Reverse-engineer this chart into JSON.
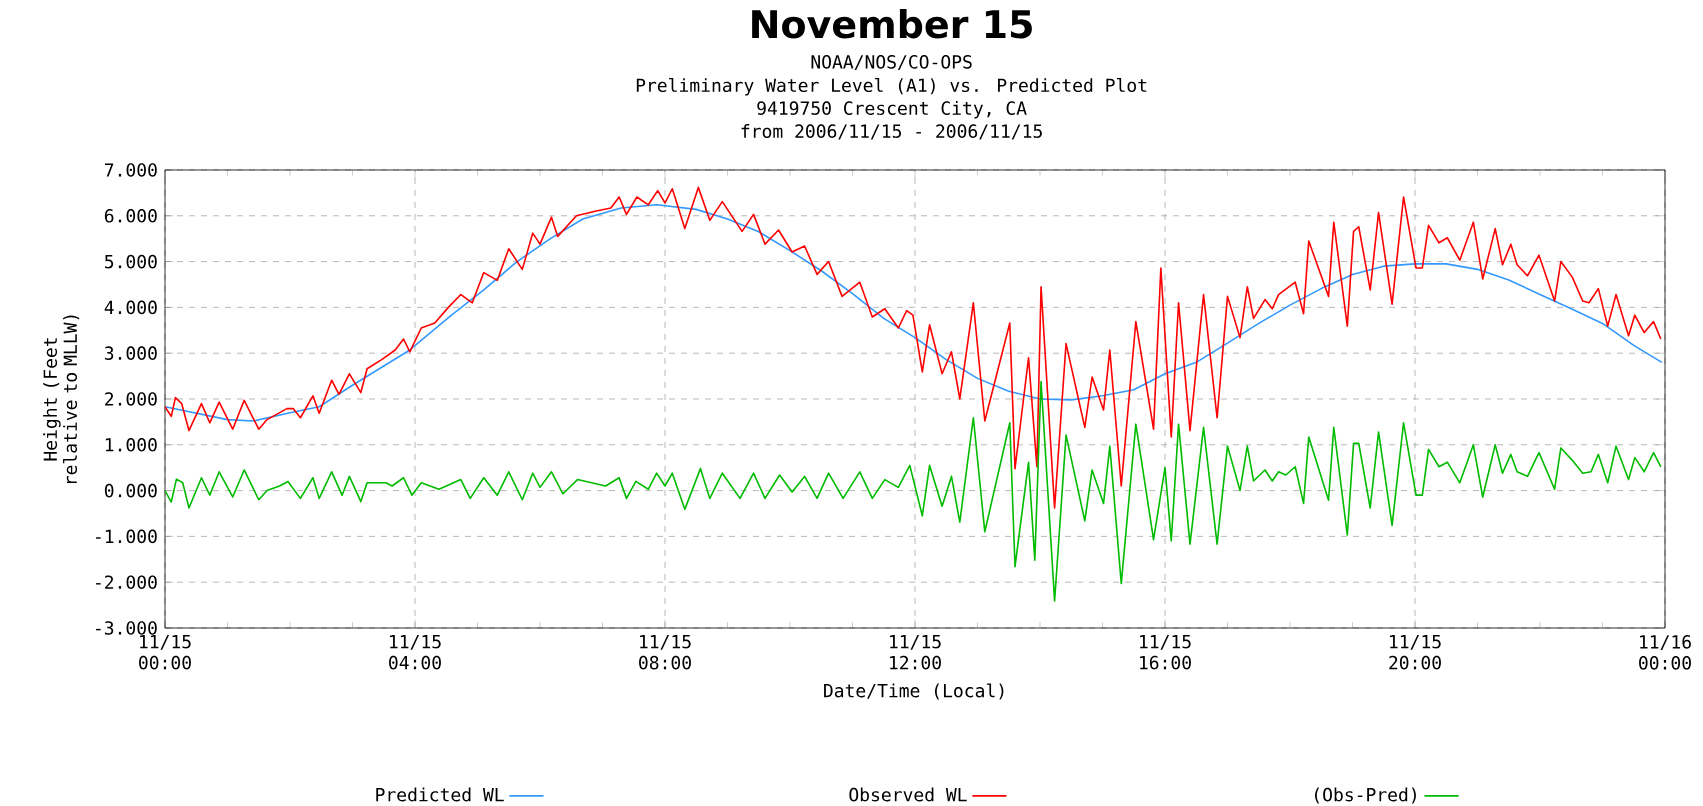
{
  "chart_data": {
    "type": "line",
    "title": "November 15",
    "annotations": [
      "NOAA/NOS/CO-OPS",
      "Preliminary  Water Level (A1) vs. Predicted Plot",
      "9419750 Crescent City, CA",
      "from 2006/11/15 - 2006/11/15"
    ],
    "xlabel": "Date/Time (Local)",
    "ylabel": "Height (Feet relative to MLLW)",
    "xlim": [
      "2006-11-15T00:00",
      "2006-11-16T00:00"
    ],
    "xticks": [
      {
        "value": "2006-11-15T00:00",
        "label": "11/15 00:00"
      },
      {
        "value": "2006-11-15T04:00",
        "label": "11/15 04:00"
      },
      {
        "value": "2006-11-15T08:00",
        "label": "11/15 08:00"
      },
      {
        "value": "2006-11-15T12:00",
        "label": "11/15 12:00"
      },
      {
        "value": "2006-11-15T16:00",
        "label": "11/15 16:00"
      },
      {
        "value": "2006-11-15T20:00",
        "label": "11/15 20:00"
      },
      {
        "value": "2006-11-16T00:00",
        "label": "11/16 00:00"
      }
    ],
    "ylim": [
      -3,
      7
    ],
    "yticks": [
      {
        "value": -3,
        "label": "-3.000"
      },
      {
        "value": -2,
        "label": "-2.000"
      },
      {
        "value": -1,
        "label": "-1.000"
      },
      {
        "value": 0,
        "label": "0.000"
      },
      {
        "value": 1,
        "label": "1.000"
      },
      {
        "value": 2,
        "label": "2.000"
      },
      {
        "value": 3,
        "label": "3.000"
      },
      {
        "value": 4,
        "label": "4.000"
      },
      {
        "value": 5,
        "label": "5.000"
      },
      {
        "value": 6,
        "label": "6.000"
      },
      {
        "value": 7,
        "label": "7.000"
      }
    ],
    "grid": true,
    "legend": "bottom",
    "marker": "none",
    "line_style": "solid",
    "series": [
      {
        "name": "Predicted WL",
        "color": "#3399ff",
        "x": [
          "2006-11-15T00:00",
          "2006-11-15T01:00",
          "2006-11-15T01:25",
          "2006-11-15T02:00",
          "2006-11-15T02:28",
          "2006-11-15T03:00",
          "2006-11-15T03:55",
          "2006-11-15T04:35",
          "2006-11-15T05:06",
          "2006-11-15T05:38",
          "2006-11-15T06:10",
          "2006-11-15T06:41",
          "2006-11-15T07:18",
          "2006-11-15T07:52",
          "2006-11-15T08:30",
          "2006-11-15T09:00",
          "2006-11-15T09:30",
          "2006-11-15T10:00",
          "2006-11-15T10:30",
          "2006-11-15T11:00",
          "2006-11-15T11:30",
          "2006-11-15T12:00",
          "2006-11-15T12:30",
          "2006-11-15T13:00",
          "2006-11-15T13:30",
          "2006-11-15T14:00",
          "2006-11-15T14:30",
          "2006-11-15T15:00",
          "2006-11-15T15:30",
          "2006-11-15T16:00",
          "2006-11-15T16:30",
          "2006-11-15T17:00",
          "2006-11-15T17:30",
          "2006-11-15T18:00",
          "2006-11-15T18:30",
          "2006-11-15T19:00",
          "2006-11-15T19:30",
          "2006-11-15T20:00",
          "2006-11-15T20:30",
          "2006-11-15T21:00",
          "2006-11-15T21:30",
          "2006-11-15T22:00",
          "2006-11-15T22:30",
          "2006-11-15T23:00",
          "2006-11-15T23:30",
          "2006-11-15T23:57"
        ],
        "values": [
          1.83,
          1.55,
          1.52,
          1.7,
          1.83,
          2.3,
          3.07,
          3.83,
          4.38,
          5.0,
          5.5,
          5.93,
          6.17,
          6.24,
          6.14,
          5.93,
          5.65,
          5.24,
          4.8,
          4.3,
          3.76,
          3.34,
          2.86,
          2.45,
          2.17,
          2.0,
          1.98,
          2.07,
          2.2,
          2.55,
          2.8,
          3.22,
          3.65,
          4.05,
          4.41,
          4.72,
          4.9,
          4.95,
          4.95,
          4.83,
          4.6,
          4.28,
          3.97,
          3.65,
          3.17,
          2.8
        ]
      },
      {
        "name": "Observed WL",
        "color": "#ff0000",
        "x": [
          "2006-11-15T00:00",
          "2006-11-15T00:06",
          "2006-11-15T00:10",
          "2006-11-15T00:16",
          "2006-11-15T00:23",
          "2006-11-15T00:35",
          "2006-11-15T00:43",
          "2006-11-15T00:52",
          "2006-11-15T01:05",
          "2006-11-15T01:16",
          "2006-11-15T01:30",
          "2006-11-15T01:38",
          "2006-11-15T01:57",
          "2006-11-15T02:03",
          "2006-11-15T02:10",
          "2006-11-15T02:22",
          "2006-11-15T02:28",
          "2006-11-15T02:40",
          "2006-11-15T02:47",
          "2006-11-15T02:57",
          "2006-11-15T03:08",
          "2006-11-15T03:14",
          "2006-11-15T03:28",
          "2006-11-15T03:41",
          "2006-11-15T03:49",
          "2006-11-15T03:55",
          "2006-11-15T04:06",
          "2006-11-15T04:19",
          "2006-11-15T04:32",
          "2006-11-15T04:44",
          "2006-11-15T04:55",
          "2006-11-15T05:06",
          "2006-11-15T05:19",
          "2006-11-15T05:30",
          "2006-11-15T05:43",
          "2006-11-15T05:53",
          "2006-11-15T06:00",
          "2006-11-15T06:11",
          "2006-11-15T06:17",
          "2006-11-15T06:35",
          "2006-11-15T06:53",
          "2006-11-15T07:08",
          "2006-11-15T07:16",
          "2006-11-15T07:23",
          "2006-11-15T07:33",
          "2006-11-15T07:44",
          "2006-11-15T07:53",
          "2006-11-15T08:00",
          "2006-11-15T08:07",
          "2006-11-15T08:19",
          "2006-11-15T08:32",
          "2006-11-15T08:43",
          "2006-11-15T08:55",
          "2006-11-15T09:14",
          "2006-11-15T09:25",
          "2006-11-15T09:36",
          "2006-11-15T09:49",
          "2006-11-15T10:02",
          "2006-11-15T10:14",
          "2006-11-15T10:26",
          "2006-11-15T10:37",
          "2006-11-15T10:50",
          "2006-11-15T11:07",
          "2006-11-15T11:19",
          "2006-11-15T11:31",
          "2006-11-15T11:44",
          "2006-11-15T11:52",
          "2006-11-15T11:58",
          "2006-11-15T12:07",
          "2006-11-15T12:14",
          "2006-11-15T12:26",
          "2006-11-15T12:35",
          "2006-11-15T12:43",
          "2006-11-15T12:56",
          "2006-11-15T13:07",
          "2006-11-15T13:31",
          "2006-11-15T13:36",
          "2006-11-15T13:49",
          "2006-11-15T13:57",
          "2006-11-15T14:01",
          "2006-11-15T14:14",
          "2006-11-15T14:25",
          "2006-11-15T14:43",
          "2006-11-15T14:50",
          "2006-11-15T15:01",
          "2006-11-15T15:07",
          "2006-11-15T15:18",
          "2006-11-15T15:32",
          "2006-11-15T15:49",
          "2006-11-15T15:56",
          "2006-11-15T16:06",
          "2006-11-15T16:13",
          "2006-11-15T16:24",
          "2006-11-15T16:37",
          "2006-11-15T16:50",
          "2006-11-15T17:00",
          "2006-11-15T17:12",
          "2006-11-15T17:19",
          "2006-11-15T17:25",
          "2006-11-15T17:36",
          "2006-11-15T17:43",
          "2006-11-15T17:49",
          "2006-11-15T18:05",
          "2006-11-15T18:13",
          "2006-11-15T18:18",
          "2006-11-15T18:37",
          "2006-11-15T18:42",
          "2006-11-15T18:55",
          "2006-11-15T19:01",
          "2006-11-15T19:06",
          "2006-11-15T19:17",
          "2006-11-15T19:25",
          "2006-11-15T19:38",
          "2006-11-15T19:49",
          "2006-11-15T20:01",
          "2006-11-15T20:07",
          "2006-11-15T20:13",
          "2006-11-15T20:23",
          "2006-11-15T20:31",
          "2006-11-15T20:43",
          "2006-11-15T20:56",
          "2006-11-15T21:05",
          "2006-11-15T21:17",
          "2006-11-15T21:24",
          "2006-11-15T21:32",
          "2006-11-15T21:38",
          "2006-11-15T21:48",
          "2006-11-15T21:59",
          "2006-11-15T22:14",
          "2006-11-15T22:20",
          "2006-11-15T22:31",
          "2006-11-15T22:41",
          "2006-11-15T22:47",
          "2006-11-15T22:56",
          "2006-11-15T23:05",
          "2006-11-15T23:13",
          "2006-11-15T23:25",
          "2006-11-15T23:31",
          "2006-11-15T23:40",
          "2006-11-15T23:49",
          "2006-11-15T23:56"
        ],
        "values": [
          1.83,
          1.62,
          2.03,
          1.9,
          1.31,
          1.9,
          1.48,
          1.93,
          1.34,
          1.97,
          1.34,
          1.55,
          1.79,
          1.79,
          1.59,
          2.07,
          1.69,
          2.41,
          2.1,
          2.55,
          2.14,
          2.66,
          2.86,
          3.07,
          3.31,
          3.03,
          3.55,
          3.66,
          4.0,
          4.28,
          4.1,
          4.76,
          4.59,
          5.28,
          4.83,
          5.62,
          5.38,
          5.97,
          5.55,
          6.0,
          6.1,
          6.17,
          6.41,
          6.03,
          6.41,
          6.24,
          6.55,
          6.28,
          6.59,
          5.72,
          6.62,
          5.9,
          6.31,
          5.66,
          6.03,
          5.38,
          5.69,
          5.21,
          5.34,
          4.72,
          5.0,
          4.24,
          4.55,
          3.79,
          3.97,
          3.55,
          3.93,
          3.83,
          2.59,
          3.62,
          2.55,
          3.03,
          2.0,
          4.1,
          1.52,
          3.66,
          0.48,
          2.9,
          0.52,
          4.45,
          -0.38,
          3.21,
          1.38,
          2.48,
          1.76,
          3.07,
          0.1,
          3.69,
          1.34,
          4.86,
          1.17,
          4.1,
          1.31,
          4.28,
          1.59,
          4.24,
          3.34,
          4.45,
          3.76,
          4.17,
          3.97,
          4.28,
          4.55,
          3.86,
          5.45,
          4.24,
          5.86,
          3.59,
          5.66,
          5.76,
          4.38,
          6.07,
          4.07,
          6.41,
          4.86,
          4.86,
          5.79,
          5.41,
          5.52,
          5.03,
          5.86,
          4.62,
          5.72,
          4.93,
          5.38,
          4.93,
          4.69,
          5.14,
          4.14,
          5.0,
          4.66,
          4.14,
          4.1,
          4.41,
          3.59,
          4.28,
          3.38,
          3.83,
          3.45,
          3.69,
          3.31
        ]
      },
      {
        "name": "(Obs-Pred)",
        "color": "#00bb00",
        "x": [
          "2006-11-15T00:00",
          "2006-11-15T00:06",
          "2006-11-15T00:11",
          "2006-11-15T00:17",
          "2006-11-15T00:23",
          "2006-11-15T00:35",
          "2006-11-15T00:43",
          "2006-11-15T00:52",
          "2006-11-15T01:05",
          "2006-11-15T01:16",
          "2006-11-15T01:30",
          "2006-11-15T01:38",
          "2006-11-15T01:50",
          "2006-11-15T01:58",
          "2006-11-15T02:10",
          "2006-11-15T02:22",
          "2006-11-15T02:28",
          "2006-11-15T02:40",
          "2006-11-15T02:50",
          "2006-11-15T02:57",
          "2006-11-15T03:08",
          "2006-11-15T03:14",
          "2006-11-15T03:32",
          "2006-11-15T03:38",
          "2006-11-15T03:49",
          "2006-11-15T03:57",
          "2006-11-15T04:06",
          "2006-11-15T04:23",
          "2006-11-15T04:44",
          "2006-11-15T04:53",
          "2006-11-15T05:06",
          "2006-11-15T05:19",
          "2006-11-15T05:30",
          "2006-11-15T05:43",
          "2006-11-15T05:53",
          "2006-11-15T06:00",
          "2006-11-15T06:11",
          "2006-11-15T06:22",
          "2006-11-15T06:36",
          "2006-11-15T07:03",
          "2006-11-15T07:16",
          "2006-11-15T07:23",
          "2006-11-15T07:32",
          "2006-11-15T07:44",
          "2006-11-15T07:52",
          "2006-11-15T08:00",
          "2006-11-15T08:07",
          "2006-11-15T08:19",
          "2006-11-15T08:34",
          "2006-11-15T08:43",
          "2006-11-15T08:55",
          "2006-11-15T09:12",
          "2006-11-15T09:25",
          "2006-11-15T09:36",
          "2006-11-15T09:50",
          "2006-11-15T10:02",
          "2006-11-15T10:14",
          "2006-11-15T10:26",
          "2006-11-15T10:37",
          "2006-11-15T10:51",
          "2006-11-15T11:07",
          "2006-11-15T11:19",
          "2006-11-15T11:31",
          "2006-11-15T11:44",
          "2006-11-15T11:55",
          "2006-11-15T12:07",
          "2006-11-15T12:14",
          "2006-11-15T12:26",
          "2006-11-15T12:35",
          "2006-11-15T12:43",
          "2006-11-15T12:56",
          "2006-11-15T13:07",
          "2006-11-15T13:31",
          "2006-11-15T13:36",
          "2006-11-15T13:49",
          "2006-11-15T13:55",
          "2006-11-15T14:01",
          "2006-11-15T14:14",
          "2006-11-15T14:25",
          "2006-11-15T14:43",
          "2006-11-15T14:50",
          "2006-11-15T15:01",
          "2006-11-15T15:07",
          "2006-11-15T15:18",
          "2006-11-15T15:32",
          "2006-11-15T15:49",
          "2006-11-15T16:00",
          "2006-11-15T16:06",
          "2006-11-15T16:13",
          "2006-11-15T16:24",
          "2006-11-15T16:37",
          "2006-11-15T16:50",
          "2006-11-15T17:00",
          "2006-11-15T17:12",
          "2006-11-15T17:19",
          "2006-11-15T17:25",
          "2006-11-15T17:36",
          "2006-11-15T17:43",
          "2006-11-15T17:49",
          "2006-11-15T17:56",
          "2006-11-15T18:05",
          "2006-11-15T18:13",
          "2006-11-15T18:18",
          "2006-11-15T18:37",
          "2006-11-15T18:42",
          "2006-11-15T18:55",
          "2006-11-15T19:01",
          "2006-11-15T19:06",
          "2006-11-15T19:17",
          "2006-11-15T19:25",
          "2006-11-15T19:38",
          "2006-11-15T19:49",
          "2006-11-15T20:01",
          "2006-11-15T20:07",
          "2006-11-15T20:13",
          "2006-11-15T20:23",
          "2006-11-15T20:31",
          "2006-11-15T20:43",
          "2006-11-15T20:56",
          "2006-11-15T21:05",
          "2006-11-15T21:17",
          "2006-11-15T21:24",
          "2006-11-15T21:32",
          "2006-11-15T21:38",
          "2006-11-15T21:48",
          "2006-11-15T21:59",
          "2006-11-15T22:14",
          "2006-11-15T22:20",
          "2006-11-15T22:31",
          "2006-11-15T22:41",
          "2006-11-15T22:49",
          "2006-11-15T22:56",
          "2006-11-15T23:05",
          "2006-11-15T23:13",
          "2006-11-15T23:25",
          "2006-11-15T23:31",
          "2006-11-15T23:40",
          "2006-11-15T23:49",
          "2006-11-15T23:56"
        ],
        "values": [
          0.0,
          -0.25,
          0.25,
          0.17,
          -0.38,
          0.28,
          -0.1,
          0.41,
          -0.14,
          0.45,
          -0.2,
          0.0,
          0.1,
          0.2,
          -0.17,
          0.28,
          -0.17,
          0.41,
          -0.1,
          0.31,
          -0.24,
          0.17,
          0.17,
          0.1,
          0.28,
          -0.1,
          0.17,
          0.03,
          0.24,
          -0.17,
          0.28,
          -0.1,
          0.41,
          -0.2,
          0.38,
          0.07,
          0.41,
          -0.07,
          0.24,
          0.1,
          0.28,
          -0.17,
          0.2,
          0.03,
          0.38,
          0.1,
          0.38,
          -0.41,
          0.48,
          -0.17,
          0.38,
          -0.17,
          0.38,
          -0.17,
          0.34,
          -0.03,
          0.31,
          -0.17,
          0.38,
          -0.17,
          0.41,
          -0.17,
          0.24,
          0.07,
          0.55,
          -0.55,
          0.55,
          -0.34,
          0.31,
          -0.69,
          1.59,
          -0.9,
          1.48,
          -1.66,
          0.62,
          -1.52,
          2.38,
          -2.41,
          1.21,
          -0.66,
          0.45,
          -0.28,
          0.97,
          -2.03,
          1.45,
          -1.07,
          0.5,
          -1.1,
          1.45,
          -1.17,
          1.38,
          -1.17,
          0.97,
          0.0,
          0.97,
          0.21,
          0.45,
          0.21,
          0.41,
          0.34,
          0.52,
          -0.28,
          1.17,
          -0.21,
          1.38,
          -0.97,
          1.03,
          1.03,
          -0.38,
          1.28,
          -0.76,
          1.48,
          -0.1,
          -0.1,
          0.9,
          0.52,
          0.62,
          0.17,
          1.0,
          -0.14,
          1.0,
          0.38,
          0.79,
          0.41,
          0.31,
          0.83,
          0.03,
          0.93,
          0.66,
          0.38,
          0.41,
          0.79,
          0.17,
          0.97,
          0.24,
          0.72,
          0.41,
          0.83,
          0.52
        ]
      }
    ]
  }
}
